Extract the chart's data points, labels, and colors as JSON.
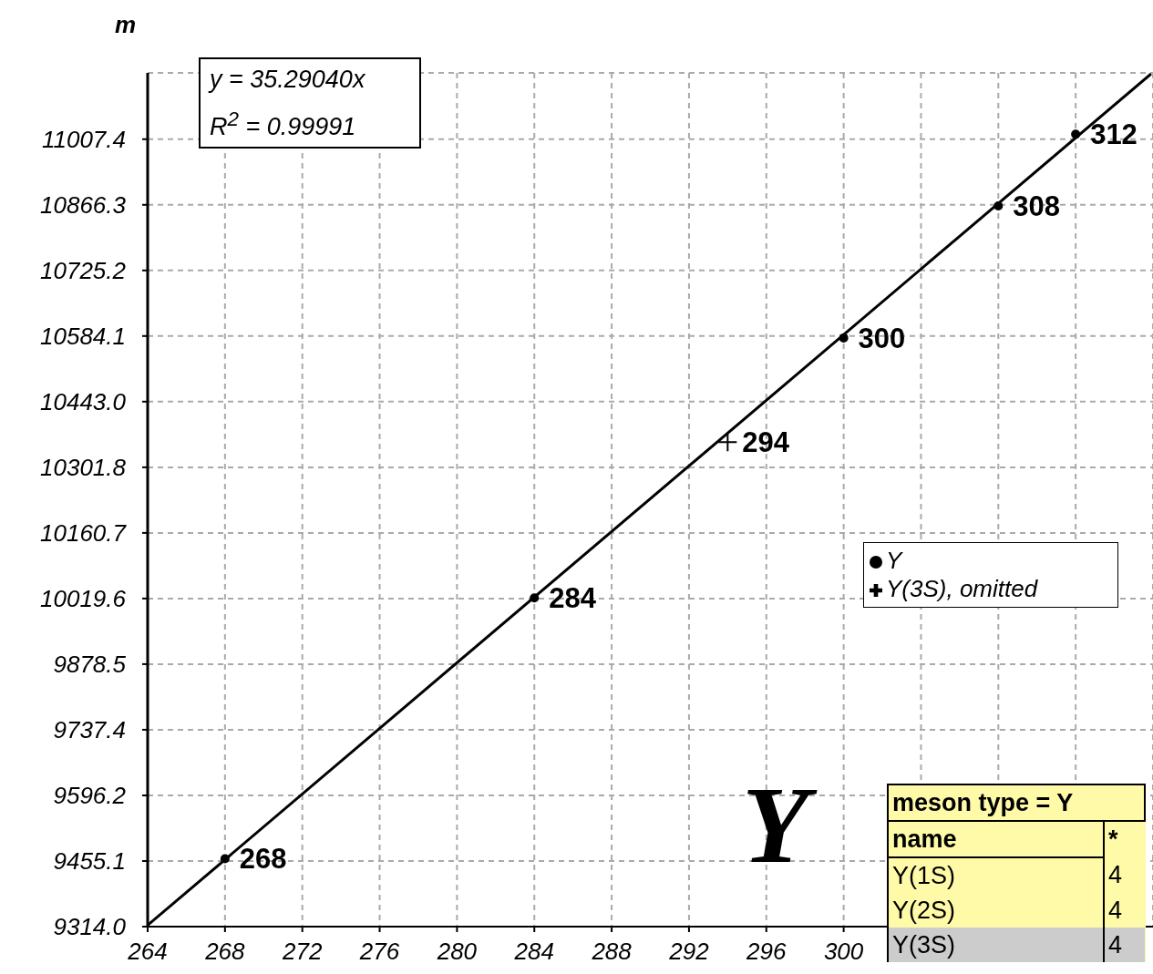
{
  "chart_data": {
    "type": "scatter",
    "ylabel": "m",
    "xlim": [
      264,
      316
    ],
    "ylim": [
      9314.0,
      11150
    ],
    "xticks": [
      264,
      268,
      272,
      276,
      280,
      284,
      288,
      292,
      296,
      300,
      {
        "value": 304,
        "label": null
      },
      {
        "value": 308,
        "label": null
      },
      {
        "value": 312,
        "label": null
      }
    ],
    "yticks": [
      {
        "value": 9314.0,
        "label": "9314.0"
      },
      9455.1,
      9596.2,
      9737.4,
      9878.5,
      10019.6,
      10160.7,
      10301.8,
      {
        "value": 10443.0,
        "label": "10443.0"
      },
      10584.1,
      10725.2,
      10866.3,
      11007.4
    ],
    "grid": true,
    "legend": "right",
    "series": [
      {
        "name": "Y",
        "type": "scatter",
        "marker": "circle",
        "color": "#000000",
        "x": [
          268,
          284,
          300,
          308,
          312
        ],
        "values": [
          9460,
          10021,
          10580,
          10864,
          11018
        ]
      },
      {
        "name": "Y(3S), omitted",
        "type": "scatter",
        "marker": "cross",
        "color": "#000000",
        "x": [
          294
        ],
        "values": [
          10356
        ]
      },
      {
        "type": "line",
        "marker": "none",
        "color": "#000000",
        "x": [
          264,
          315.9
        ],
        "values": [
          9317,
          11148
        ]
      }
    ],
    "annotations": [
      "y = 35.29040x",
      "R$^{2}$ = 0.99991",
      "Y",
      "meson type = Y",
      "name",
      "*",
      "Y(1S)",
      "4",
      "Y(2S)",
      "4",
      "Y(3S)",
      "4",
      {
        "text": "268",
        "x": 268,
        "y": 9460
      },
      {
        "text": "284",
        "x": 284,
        "y": 10021
      },
      {
        "text": "294",
        "x": 294,
        "y": 10356
      },
      {
        "text": "300",
        "x": 300,
        "y": 10580
      },
      {
        "text": "308",
        "x": 308,
        "y": 10864
      },
      {
        "text": "312",
        "x": 312,
        "y": 11018
      }
    ]
  }
}
